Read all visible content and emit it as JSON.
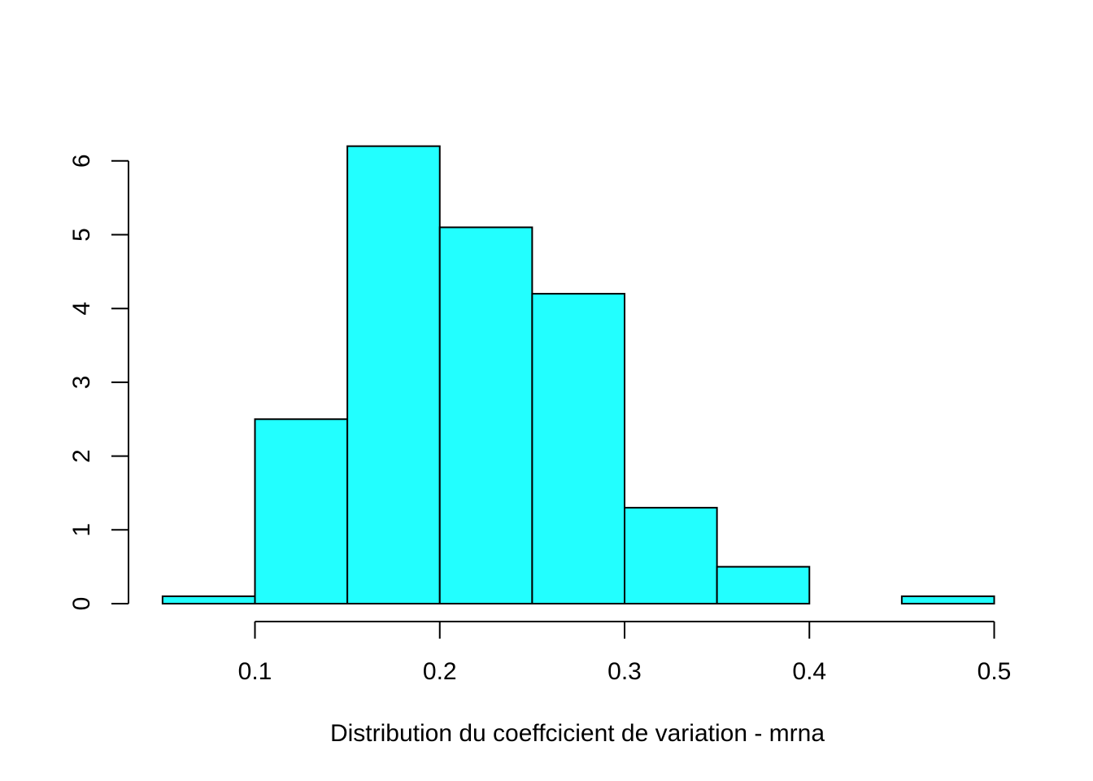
{
  "chart_data": {
    "type": "bar",
    "subtype": "histogram",
    "title": "",
    "xlabel": "Distribution du coeffcicient de variation - mrna",
    "ylabel": "",
    "bins": [
      {
        "x0": 0.05,
        "x1": 0.1,
        "value": 0.1
      },
      {
        "x0": 0.1,
        "x1": 0.15,
        "value": 2.5
      },
      {
        "x0": 0.15,
        "x1": 0.2,
        "value": 6.2
      },
      {
        "x0": 0.2,
        "x1": 0.25,
        "value": 5.1
      },
      {
        "x0": 0.25,
        "x1": 0.3,
        "value": 4.2
      },
      {
        "x0": 0.3,
        "x1": 0.35,
        "value": 1.3
      },
      {
        "x0": 0.35,
        "x1": 0.4,
        "value": 0.5
      },
      {
        "x0": 0.4,
        "x1": 0.45,
        "value": 0.0
      },
      {
        "x0": 0.45,
        "x1": 0.5,
        "value": 0.1
      }
    ],
    "xlim": [
      0.05,
      0.5
    ],
    "ylim": [
      0,
      6.2
    ],
    "x_ticks": [
      {
        "value": 0.1,
        "label": "0.1"
      },
      {
        "value": 0.2,
        "label": "0.2"
      },
      {
        "value": 0.3,
        "label": "0.3"
      },
      {
        "value": 0.4,
        "label": "0.4"
      },
      {
        "value": 0.5,
        "label": "0.5"
      }
    ],
    "y_ticks": [
      {
        "value": 0,
        "label": "0"
      },
      {
        "value": 1,
        "label": "1"
      },
      {
        "value": 2,
        "label": "2"
      },
      {
        "value": 3,
        "label": "3"
      },
      {
        "value": 4,
        "label": "4"
      },
      {
        "value": 5,
        "label": "5"
      },
      {
        "value": 6,
        "label": "6"
      }
    ],
    "grid": false,
    "legend": "none",
    "bar_color": "#22FFFF",
    "edge_color": "#000000"
  }
}
